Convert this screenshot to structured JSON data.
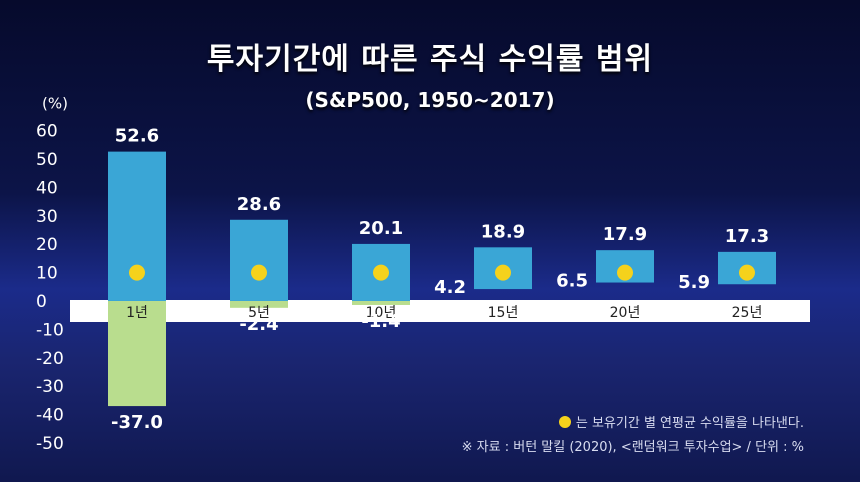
{
  "chart_data": {
    "type": "bar",
    "title": "투자기간에 따른 주식 수익률 범위",
    "subtitle": "(S&P500, 1950~2017)",
    "yunit": "(%)",
    "ylim": [
      -50,
      60
    ],
    "yticks": [
      "60",
      "50",
      "40",
      "30",
      "20",
      "10",
      "0",
      "-10",
      "-20",
      "-30",
      "-40",
      "-50"
    ],
    "categories": [
      "1년",
      "5년",
      "10년",
      "15년",
      "20년",
      "25년"
    ],
    "max": [
      52.6,
      28.6,
      20.1,
      18.9,
      17.9,
      17.3
    ],
    "min": [
      -37.0,
      -2.4,
      -1.4,
      4.2,
      6.5,
      5.9
    ],
    "max_labels": [
      "52.6",
      "28.6",
      "20.1",
      "18.9",
      "17.9",
      "17.3"
    ],
    "min_labels": [
      "-37.0",
      "-2.4",
      "-1.4",
      "4.2",
      "6.5",
      "5.9"
    ],
    "avg_marker_value": 10,
    "colors": {
      "positive": "#3aa6d6",
      "negative": "#b9dd8e",
      "marker": "#f5d21c"
    },
    "legend": "는 보유기간 별 연평균 수익률을 나타낸다.",
    "source": "※ 자료 : 버턴 말킬 (2020), <랜덤워크 투자수업> / 단위 : %"
  }
}
